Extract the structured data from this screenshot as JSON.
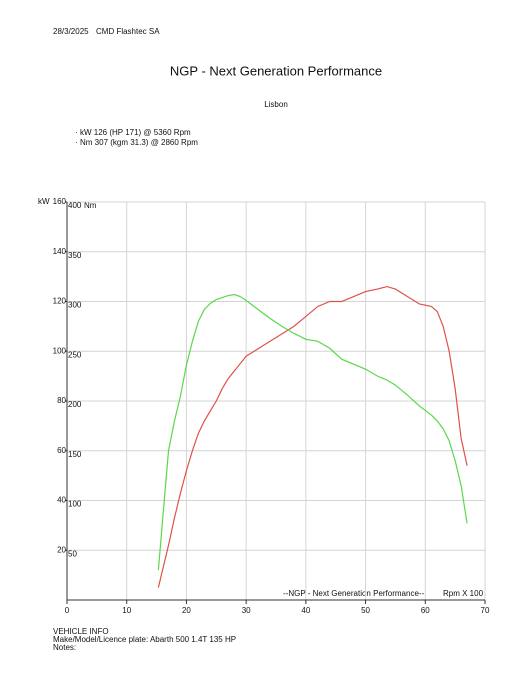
{
  "header": {
    "date": "28/3/2025",
    "company": "CMD Flashtec SA",
    "title": "NGP - Next Generation Performance",
    "location": "Lisbon"
  },
  "chart_data": {
    "type": "line",
    "y_label": "kW",
    "y2_label": "Nm",
    "x_label": "Rpm X 100",
    "annotation": "--NGP - Next Generation Performance--",
    "x": [
      15.3,
      16,
      17,
      18,
      19,
      20,
      21,
      22,
      23,
      24,
      25,
      26,
      27,
      28,
      29,
      30,
      32,
      34,
      36,
      38,
      40,
      42,
      44,
      46,
      48,
      50,
      52,
      53.6,
      55,
      57,
      59,
      61,
      62,
      63,
      64,
      65,
      66,
      67
    ],
    "series": [
      {
        "name": "kW 126 (HP 171) @ 5360 Rpm",
        "color": "#e0504a",
        "axis": "y",
        "values": [
          5,
          12,
          22,
          33,
          43,
          52,
          60,
          67,
          72,
          76,
          80,
          85,
          89,
          92,
          95,
          98,
          101,
          104,
          107,
          110,
          114,
          118,
          120,
          120,
          122,
          124,
          125,
          126,
          125,
          122,
          119,
          118,
          116,
          110,
          100,
          85,
          65,
          54
        ]
      },
      {
        "name": "Nm 307 (kgm 31.3) @ 2860 Rpm",
        "color": "#5ad84a",
        "axis": "y2",
        "values": [
          30,
          80,
          150,
          180,
          205,
          236,
          260,
          280,
          292,
          298,
          302,
          304,
          306,
          307,
          305,
          301,
          292,
          283,
          275,
          268,
          262,
          260,
          253,
          242,
          237,
          232,
          225,
          221,
          216,
          206,
          195,
          186,
          180,
          172,
          160,
          140,
          115,
          77
        ]
      }
    ],
    "xlim": [
      0,
      70
    ],
    "xticks": [
      0,
      10,
      20,
      30,
      40,
      50,
      60,
      70
    ],
    "ylim": [
      0,
      160
    ],
    "yticks": [
      20,
      40,
      60,
      80,
      100,
      120,
      140,
      160
    ],
    "y2lim": [
      0,
      400
    ],
    "y2ticks": [
      50,
      100,
      150,
      200,
      250,
      300,
      350,
      400
    ],
    "grid": true
  },
  "footer": {
    "heading": "VEHICLE INFO",
    "vehicle": "Make/Model/Licence plate: Abarth 500 1.4T 135 HP",
    "notes": "Notes:"
  }
}
